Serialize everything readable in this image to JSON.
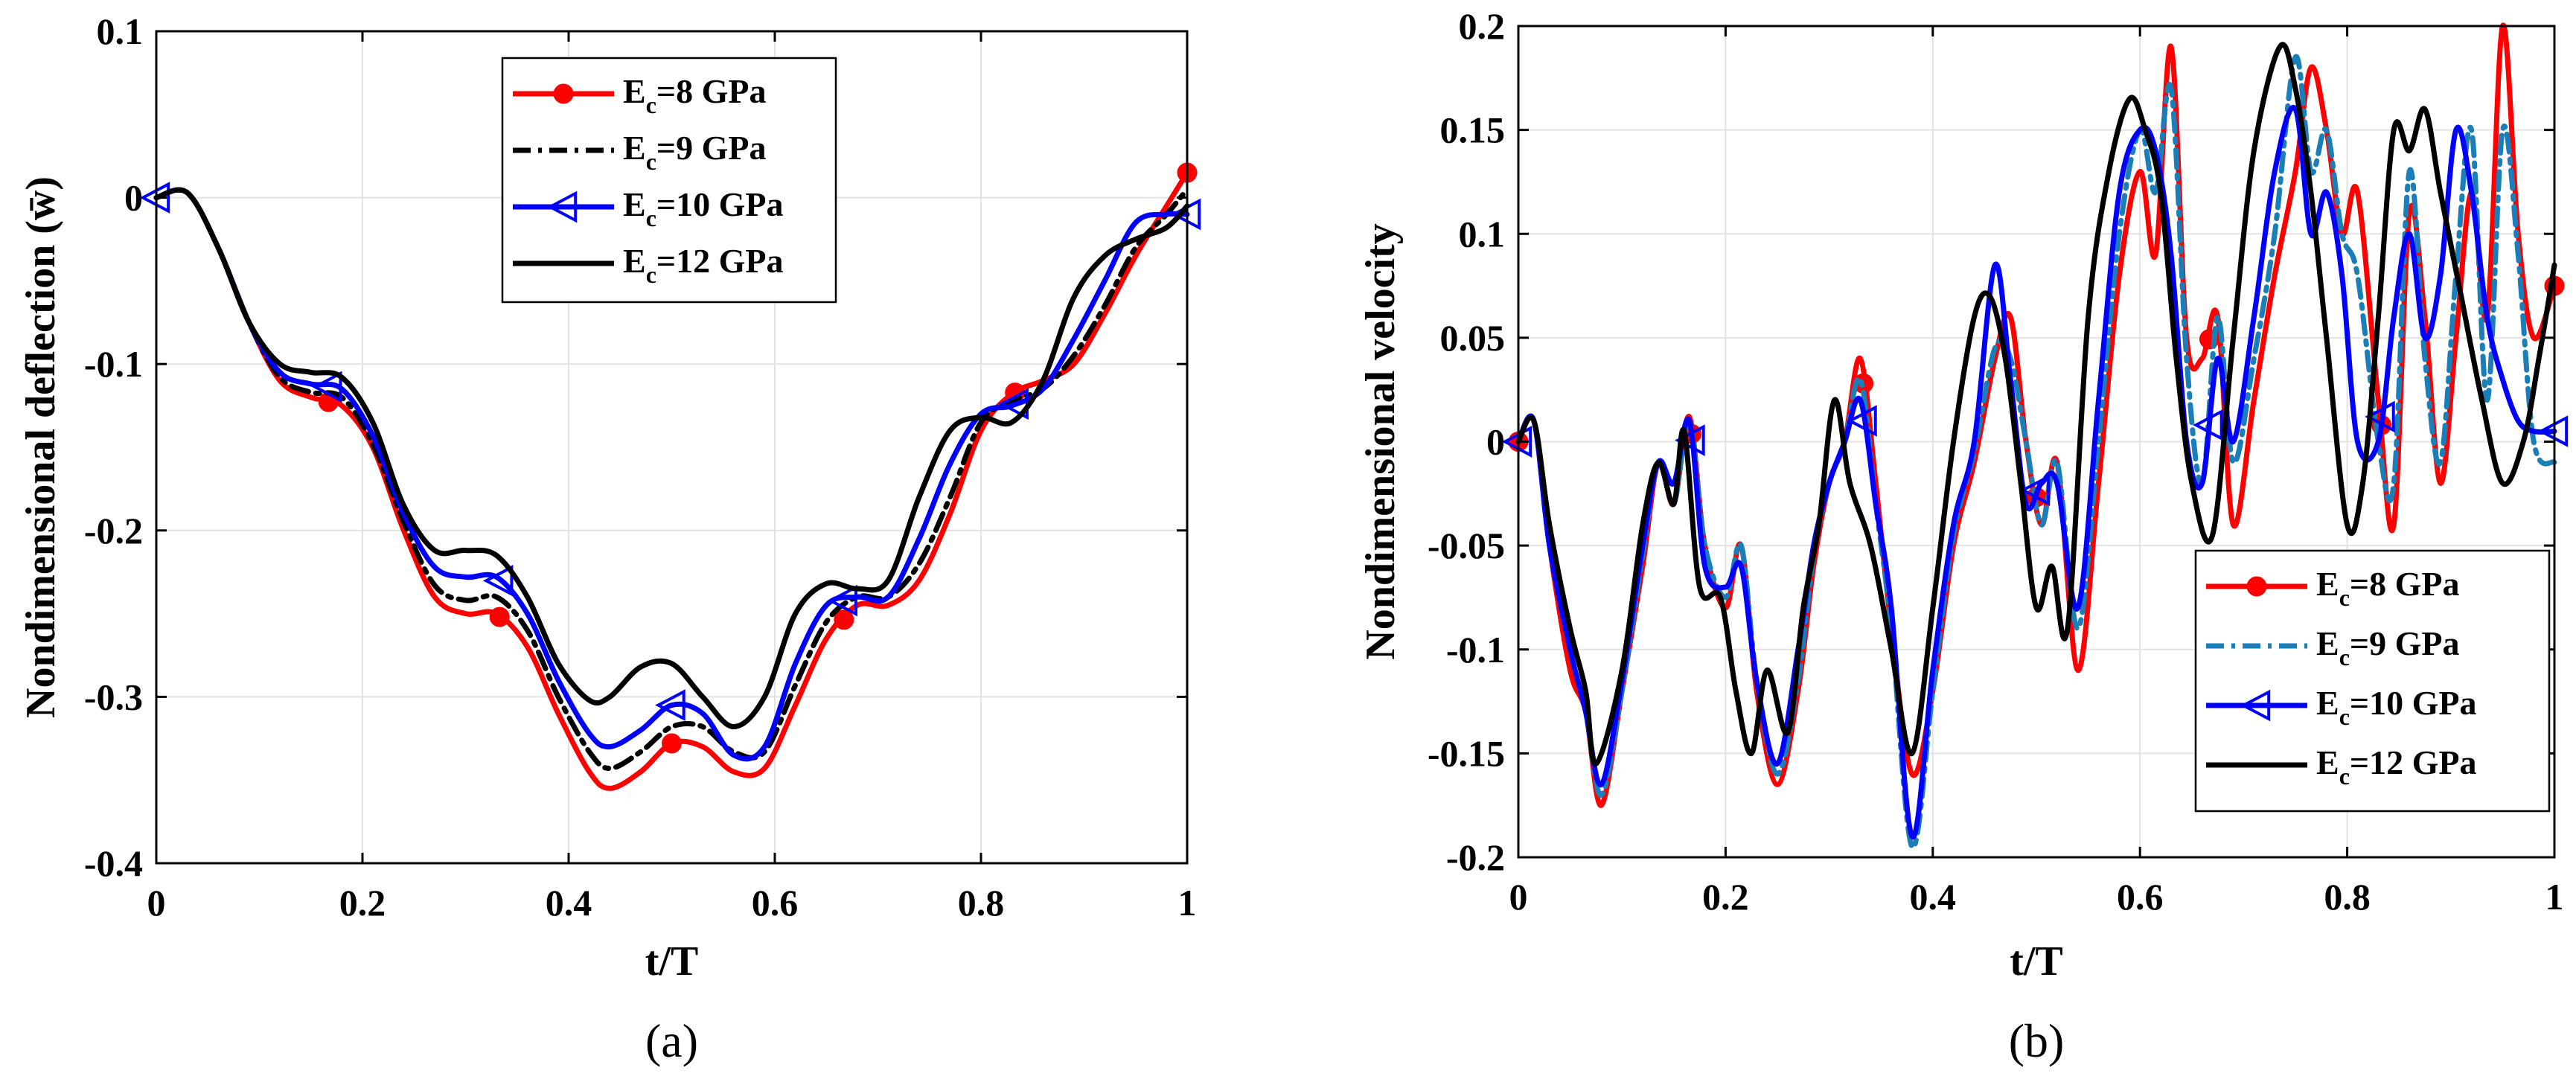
{
  "colors": {
    "Ec8": "#ff0000",
    "Ec9_a": "#000000",
    "Ec9_b": "#1a7fb8",
    "Ec10": "#0000ff",
    "Ec12": "#000000",
    "grid": "#e3e3e3"
  },
  "chart_data": [
    {
      "type": "line",
      "panel_caption": "(a)",
      "title": "",
      "xlabel": "t/T",
      "ylabel": "Nondimensional deflection (w̄)",
      "xlim": [
        0,
        1
      ],
      "ylim": [
        -0.4,
        0.1
      ],
      "xticks": [
        0,
        0.2,
        0.4,
        0.6,
        0.8,
        1
      ],
      "xtick_labels": [
        "0",
        "0.2",
        "0.4",
        "0.6",
        "0.8",
        "1"
      ],
      "yticks": [
        -0.4,
        -0.3,
        -0.2,
        -0.1,
        0,
        0.1
      ],
      "ytick_labels": [
        "-0.4",
        "-0.3",
        "-0.2",
        "-0.1",
        "0",
        "0.1"
      ],
      "grid": true,
      "legend_position": "top-right",
      "series": [
        {
          "name": "E",
          "sub": "c",
          "label_rest": "=8 GPa",
          "color_key": "Ec8",
          "dash": "solid",
          "marker": "circle",
          "x": [
            0,
            0.03,
            0.06,
            0.09,
            0.12,
            0.15,
            0.18,
            0.21,
            0.24,
            0.27,
            0.3,
            0.33,
            0.36,
            0.39,
            0.42,
            0.44,
            0.47,
            0.5,
            0.53,
            0.56,
            0.59,
            0.62,
            0.65,
            0.68,
            0.71,
            0.74,
            0.77,
            0.8,
            0.83,
            0.86,
            0.89,
            0.92,
            0.95,
            0.98,
            1.0
          ],
          "y": [
            0,
            0.003,
            -0.03,
            -0.075,
            -0.11,
            -0.12,
            -0.125,
            -0.15,
            -0.2,
            -0.24,
            -0.25,
            -0.25,
            -0.27,
            -0.31,
            -0.345,
            -0.355,
            -0.345,
            -0.328,
            -0.33,
            -0.345,
            -0.343,
            -0.305,
            -0.265,
            -0.245,
            -0.245,
            -0.23,
            -0.19,
            -0.14,
            -0.118,
            -0.11,
            -0.1,
            -0.07,
            -0.035,
            -0.005,
            0.015
          ],
          "marker_x": [
            0.167,
            0.333,
            0.5,
            0.667,
            0.833,
            1.0
          ]
        },
        {
          "name": "E",
          "sub": "c",
          "label_rest": "=9 GPa",
          "color_key": "Ec9_a",
          "dash": "dashdot",
          "marker": "none",
          "x": [
            0,
            0.03,
            0.06,
            0.09,
            0.12,
            0.15,
            0.18,
            0.21,
            0.24,
            0.27,
            0.3,
            0.33,
            0.36,
            0.39,
            0.42,
            0.44,
            0.47,
            0.5,
            0.53,
            0.56,
            0.59,
            0.62,
            0.65,
            0.68,
            0.71,
            0.74,
            0.77,
            0.8,
            0.83,
            0.86,
            0.89,
            0.92,
            0.95,
            0.98,
            1.0
          ],
          "y": [
            0,
            0.003,
            -0.03,
            -0.075,
            -0.108,
            -0.117,
            -0.12,
            -0.148,
            -0.195,
            -0.233,
            -0.242,
            -0.24,
            -0.26,
            -0.3,
            -0.333,
            -0.343,
            -0.333,
            -0.318,
            -0.318,
            -0.333,
            -0.333,
            -0.293,
            -0.255,
            -0.24,
            -0.24,
            -0.22,
            -0.18,
            -0.135,
            -0.122,
            -0.115,
            -0.095,
            -0.065,
            -0.03,
            -0.01,
            0.005
          ]
        },
        {
          "name": "E",
          "sub": "c",
          "label_rest": "=10 GPa",
          "color_key": "Ec10",
          "dash": "solid",
          "marker": "triangle-left",
          "x": [
            0,
            0.03,
            0.06,
            0.09,
            0.12,
            0.15,
            0.18,
            0.21,
            0.24,
            0.27,
            0.3,
            0.33,
            0.36,
            0.39,
            0.42,
            0.44,
            0.47,
            0.5,
            0.53,
            0.56,
            0.59,
            0.62,
            0.65,
            0.68,
            0.71,
            0.74,
            0.77,
            0.8,
            0.83,
            0.86,
            0.89,
            0.92,
            0.95,
            0.98,
            1.0
          ],
          "y": [
            0,
            0.003,
            -0.03,
            -0.075,
            -0.105,
            -0.112,
            -0.115,
            -0.143,
            -0.19,
            -0.222,
            -0.228,
            -0.228,
            -0.25,
            -0.29,
            -0.322,
            -0.33,
            -0.32,
            -0.305,
            -0.31,
            -0.335,
            -0.33,
            -0.28,
            -0.245,
            -0.24,
            -0.24,
            -0.205,
            -0.16,
            -0.13,
            -0.125,
            -0.115,
            -0.085,
            -0.05,
            -0.015,
            -0.01,
            -0.01
          ],
          "marker_x": [
            0.0,
            0.167,
            0.333,
            0.5,
            0.667,
            0.833,
            1.0
          ]
        },
        {
          "name": "E",
          "sub": "c",
          "label_rest": "=12 GPa",
          "color_key": "Ec12",
          "dash": "solid",
          "marker": "none",
          "x": [
            0,
            0.03,
            0.06,
            0.09,
            0.12,
            0.15,
            0.18,
            0.21,
            0.24,
            0.27,
            0.3,
            0.33,
            0.36,
            0.39,
            0.42,
            0.44,
            0.47,
            0.5,
            0.53,
            0.56,
            0.59,
            0.62,
            0.65,
            0.68,
            0.71,
            0.74,
            0.77,
            0.8,
            0.83,
            0.86,
            0.89,
            0.92,
            0.95,
            0.98,
            1.0
          ],
          "y": [
            0,
            0.003,
            -0.03,
            -0.075,
            -0.1,
            -0.105,
            -0.108,
            -0.135,
            -0.185,
            -0.212,
            -0.212,
            -0.215,
            -0.24,
            -0.28,
            -0.302,
            -0.3,
            -0.282,
            -0.28,
            -0.3,
            -0.318,
            -0.3,
            -0.25,
            -0.232,
            -0.235,
            -0.23,
            -0.18,
            -0.14,
            -0.132,
            -0.135,
            -0.11,
            -0.06,
            -0.035,
            -0.025,
            -0.018,
            -0.005
          ]
        }
      ]
    },
    {
      "type": "line",
      "panel_caption": "(b)",
      "title": "",
      "xlabel": "t/T",
      "ylabel": "Nondimensional velocity",
      "xlim": [
        0,
        1
      ],
      "ylim": [
        -0.2,
        0.2
      ],
      "xticks": [
        0,
        0.2,
        0.4,
        0.6,
        0.8,
        1
      ],
      "xtick_labels": [
        "0",
        "0.2",
        "0.4",
        "0.6",
        "0.8",
        "1"
      ],
      "yticks": [
        -0.2,
        -0.15,
        -0.1,
        -0.05,
        0,
        0.05,
        0.1,
        0.15,
        0.2
      ],
      "ytick_labels": [
        "-0.2",
        "-0.15",
        "-0.1",
        "-0.05",
        "0",
        "0.05",
        "0.1",
        "0.15",
        "0.2"
      ],
      "grid": true,
      "legend_position": "bottom-right",
      "series": [
        {
          "name": "E",
          "sub": "c",
          "label_rest": "=8 GPa",
          "color_key": "Ec8",
          "dash": "solid",
          "marker": "circle",
          "x": [
            0,
            0.015,
            0.03,
            0.05,
            0.065,
            0.08,
            0.1,
            0.12,
            0.135,
            0.15,
            0.165,
            0.18,
            0.2,
            0.215,
            0.23,
            0.25,
            0.27,
            0.285,
            0.3,
            0.315,
            0.33,
            0.345,
            0.36,
            0.38,
            0.4,
            0.42,
            0.44,
            0.46,
            0.475,
            0.49,
            0.505,
            0.52,
            0.54,
            0.56,
            0.58,
            0.6,
            0.615,
            0.63,
            0.645,
            0.66,
            0.675,
            0.69,
            0.71,
            0.73,
            0.75,
            0.765,
            0.78,
            0.795,
            0.81,
            0.83,
            0.845,
            0.86,
            0.875,
            0.89,
            0.905,
            0.92,
            0.935,
            0.95,
            0.965,
            0.98,
            1.0
          ],
          "y": [
            0,
            0.01,
            -0.05,
            -0.11,
            -0.13,
            -0.175,
            -0.12,
            -0.06,
            -0.01,
            -0.03,
            0.012,
            -0.05,
            -0.08,
            -0.05,
            -0.12,
            -0.165,
            -0.12,
            -0.06,
            -0.02,
            0.0,
            0.04,
            -0.02,
            -0.09,
            -0.16,
            -0.12,
            -0.05,
            -0.01,
            0.04,
            0.06,
            0.0,
            -0.04,
            -0.01,
            -0.11,
            -0.02,
            0.08,
            0.13,
            0.09,
            0.19,
            0.05,
            0.04,
            0.06,
            -0.04,
            0.02,
            0.08,
            0.13,
            0.18,
            0.15,
            0.1,
            0.12,
            0.02,
            -0.04,
            0.11,
            0.06,
            -0.02,
            0.05,
            0.12,
            0.06,
            0.2,
            0.1,
            0.05,
            0.075
          ],
          "marker_x": [
            0.0,
            0.167,
            0.333,
            0.5,
            0.667,
            0.833,
            1.0
          ]
        },
        {
          "name": "E",
          "sub": "c",
          "label_rest": "=9 GPa",
          "color_key": "Ec9_b",
          "dash": "dashdot",
          "marker": "none",
          "x": [
            0,
            0.015,
            0.03,
            0.05,
            0.065,
            0.08,
            0.1,
            0.12,
            0.135,
            0.15,
            0.165,
            0.18,
            0.2,
            0.215,
            0.23,
            0.25,
            0.27,
            0.285,
            0.3,
            0.315,
            0.33,
            0.345,
            0.36,
            0.38,
            0.4,
            0.42,
            0.44,
            0.46,
            0.475,
            0.49,
            0.505,
            0.52,
            0.54,
            0.56,
            0.58,
            0.6,
            0.615,
            0.63,
            0.645,
            0.66,
            0.675,
            0.69,
            0.71,
            0.73,
            0.75,
            0.765,
            0.78,
            0.795,
            0.81,
            0.83,
            0.845,
            0.86,
            0.875,
            0.89,
            0.905,
            0.92,
            0.935,
            0.95,
            0.965,
            0.98,
            1.0
          ],
          "y": [
            0,
            0.01,
            -0.05,
            -0.1,
            -0.13,
            -0.17,
            -0.12,
            -0.055,
            -0.01,
            -0.03,
            0.01,
            -0.05,
            -0.075,
            -0.05,
            -0.115,
            -0.16,
            -0.115,
            -0.055,
            -0.02,
            0.0,
            0.03,
            -0.03,
            -0.09,
            -0.195,
            -0.12,
            -0.045,
            -0.005,
            0.045,
            0.04,
            0.0,
            -0.04,
            -0.01,
            -0.09,
            0.0,
            0.1,
            0.15,
            0.12,
            0.17,
            0.04,
            -0.02,
            0.06,
            -0.01,
            0.04,
            0.1,
            0.185,
            0.13,
            0.15,
            0.1,
            0.08,
            0.0,
            -0.02,
            0.13,
            0.04,
            -0.01,
            0.08,
            0.15,
            0.02,
            0.15,
            0.09,
            0.0,
            -0.01
          ]
        },
        {
          "name": "E",
          "sub": "c",
          "label_rest": "=10 GPa",
          "color_key": "Ec10",
          "dash": "solid",
          "marker": "triangle-left",
          "x": [
            0,
            0.015,
            0.03,
            0.05,
            0.065,
            0.08,
            0.1,
            0.12,
            0.135,
            0.15,
            0.165,
            0.18,
            0.2,
            0.215,
            0.23,
            0.25,
            0.27,
            0.285,
            0.3,
            0.315,
            0.33,
            0.345,
            0.36,
            0.38,
            0.4,
            0.42,
            0.44,
            0.46,
            0.475,
            0.49,
            0.505,
            0.52,
            0.54,
            0.56,
            0.58,
            0.6,
            0.615,
            0.63,
            0.645,
            0.66,
            0.675,
            0.69,
            0.71,
            0.73,
            0.75,
            0.765,
            0.78,
            0.795,
            0.81,
            0.83,
            0.845,
            0.86,
            0.875,
            0.89,
            0.905,
            0.92,
            0.935,
            0.95,
            0.965,
            0.98,
            1.0
          ],
          "y": [
            0,
            0.01,
            -0.05,
            -0.1,
            -0.13,
            -0.165,
            -0.115,
            -0.05,
            -0.01,
            -0.02,
            0.01,
            -0.06,
            -0.07,
            -0.06,
            -0.115,
            -0.155,
            -0.1,
            -0.05,
            -0.02,
            0.0,
            0.02,
            -0.03,
            -0.08,
            -0.19,
            -0.11,
            -0.04,
            0.0,
            0.085,
            0.03,
            -0.03,
            -0.02,
            -0.02,
            -0.08,
            0.02,
            0.12,
            0.15,
            0.14,
            0.09,
            0.0,
            -0.02,
            0.04,
            0.0,
            0.06,
            0.13,
            0.16,
            0.1,
            0.12,
            0.08,
            0.0,
            0.0,
            0.06,
            0.1,
            0.05,
            0.08,
            0.15,
            0.12,
            0.06,
            0.03,
            0.01,
            0.005,
            0.005
          ],
          "marker_x": [
            0.0,
            0.167,
            0.333,
            0.5,
            0.667,
            0.833,
            1.0
          ]
        },
        {
          "name": "E",
          "sub": "c",
          "label_rest": "=12 GPa",
          "color_key": "Ec12",
          "dash": "solid",
          "marker": "none",
          "x": [
            0,
            0.015,
            0.03,
            0.05,
            0.065,
            0.075,
            0.1,
            0.12,
            0.135,
            0.15,
            0.16,
            0.175,
            0.195,
            0.21,
            0.225,
            0.24,
            0.26,
            0.275,
            0.29,
            0.305,
            0.32,
            0.34,
            0.36,
            0.38,
            0.4,
            0.42,
            0.44,
            0.455,
            0.47,
            0.485,
            0.5,
            0.515,
            0.53,
            0.55,
            0.57,
            0.59,
            0.605,
            0.62,
            0.635,
            0.65,
            0.67,
            0.69,
            0.71,
            0.735,
            0.75,
            0.765,
            0.78,
            0.8,
            0.815,
            0.83,
            0.845,
            0.86,
            0.875,
            0.89,
            0.91,
            0.93,
            0.95,
            0.97,
            0.985,
            1.0
          ],
          "y": [
            0,
            0.01,
            -0.04,
            -0.09,
            -0.12,
            -0.155,
            -0.11,
            -0.04,
            -0.01,
            -0.03,
            0.005,
            -0.07,
            -0.075,
            -0.12,
            -0.15,
            -0.11,
            -0.14,
            -0.08,
            -0.04,
            0.02,
            -0.02,
            -0.05,
            -0.1,
            -0.15,
            -0.08,
            0.0,
            0.06,
            0.07,
            0.04,
            -0.02,
            -0.08,
            -0.06,
            -0.09,
            0.06,
            0.13,
            0.165,
            0.15,
            0.12,
            0.04,
            -0.02,
            -0.045,
            0.05,
            0.14,
            0.19,
            0.17,
            0.12,
            0.05,
            -0.04,
            -0.02,
            0.06,
            0.15,
            0.14,
            0.16,
            0.12,
            0.07,
            0.02,
            -0.02,
            0.0,
            0.04,
            0.085
          ]
        }
      ]
    }
  ]
}
